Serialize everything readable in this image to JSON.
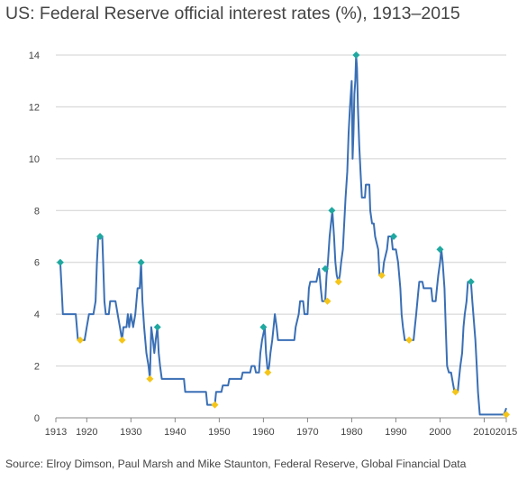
{
  "chart_data": {
    "type": "line",
    "title": "US: Federal Reserve official interest rates (%), 1913–2015",
    "source": "Source: Elroy Dimson, Paul Marsh and Mike Staunton, Federal Reserve, Global Financial Data",
    "xlabel": "",
    "ylabel": "",
    "xlim": [
      1913,
      2015
    ],
    "ylim": [
      0,
      14
    ],
    "grid": true,
    "x_ticks": [
      1913,
      1920,
      1930,
      1940,
      1950,
      1960,
      1970,
      1980,
      1990,
      2000,
      2010,
      2015
    ],
    "x_tick_labels": [
      "1913",
      "1920",
      "1930",
      "1940",
      "1950",
      "1960",
      "1970",
      "1980",
      "1990",
      "2000",
      "2010",
      "2015"
    ],
    "y_ticks": [
      0,
      2,
      4,
      6,
      8,
      10,
      12,
      14
    ],
    "y_tick_labels": [
      "0",
      "2",
      "4",
      "6",
      "8",
      "10",
      "12",
      "14"
    ],
    "colors": {
      "line": "#3a6fb5",
      "peak": "#1fa8a0",
      "trough": "#f5c518",
      "grid": "#d0d0d0",
      "axis": "#888888"
    },
    "series": [
      {
        "points": [
          [
            1914.0,
            6.0
          ],
          [
            1914.3,
            5.0
          ],
          [
            1914.6,
            4.0
          ],
          [
            1916.0,
            4.0
          ],
          [
            1917.5,
            4.0
          ],
          [
            1918.0,
            3.0
          ],
          [
            1919.5,
            3.0
          ],
          [
            1920.0,
            3.5
          ],
          [
            1920.5,
            4.0
          ],
          [
            1921.5,
            4.0
          ],
          [
            1922.0,
            4.5
          ],
          [
            1922.3,
            6.0
          ],
          [
            1922.6,
            7.0
          ],
          [
            1923.5,
            7.0
          ],
          [
            1923.7,
            6.0
          ],
          [
            1924.0,
            4.5
          ],
          [
            1924.3,
            4.0
          ],
          [
            1925.0,
            4.0
          ],
          [
            1925.3,
            4.5
          ],
          [
            1926.5,
            4.5
          ],
          [
            1927.0,
            4.0
          ],
          [
            1927.5,
            3.5
          ],
          [
            1928.0,
            3.0
          ],
          [
            1928.3,
            3.5
          ],
          [
            1929.0,
            3.5
          ],
          [
            1929.3,
            4.0
          ],
          [
            1929.6,
            3.5
          ],
          [
            1930.0,
            4.0
          ],
          [
            1930.5,
            3.5
          ],
          [
            1931.0,
            4.0
          ],
          [
            1931.5,
            5.0
          ],
          [
            1932.0,
            5.0
          ],
          [
            1932.3,
            6.0
          ],
          [
            1932.6,
            4.5
          ],
          [
            1933.0,
            3.5
          ],
          [
            1933.5,
            2.5
          ],
          [
            1934.0,
            2.0
          ],
          [
            1934.3,
            1.5
          ],
          [
            1934.6,
            3.5
          ],
          [
            1935.0,
            3.0
          ],
          [
            1935.3,
            2.5
          ],
          [
            1935.6,
            3.0
          ],
          [
            1936.0,
            3.5
          ],
          [
            1936.3,
            2.5
          ],
          [
            1936.6,
            2.0
          ],
          [
            1937.0,
            1.5
          ],
          [
            1938.0,
            1.5
          ],
          [
            1942.0,
            1.5
          ],
          [
            1942.3,
            1.0
          ],
          [
            1947.0,
            1.0
          ],
          [
            1947.3,
            0.5
          ],
          [
            1949.0,
            0.5
          ],
          [
            1949.3,
            1.0
          ],
          [
            1950.5,
            1.0
          ],
          [
            1950.8,
            1.25
          ],
          [
            1952.0,
            1.25
          ],
          [
            1952.3,
            1.5
          ],
          [
            1955.0,
            1.5
          ],
          [
            1955.3,
            1.75
          ],
          [
            1957.0,
            1.75
          ],
          [
            1957.3,
            2.0
          ],
          [
            1958.0,
            2.0
          ],
          [
            1958.3,
            1.75
          ],
          [
            1959.0,
            1.75
          ],
          [
            1959.3,
            2.5
          ],
          [
            1959.7,
            3.0
          ],
          [
            1960.0,
            3.25
          ],
          [
            1960.3,
            3.5
          ],
          [
            1960.6,
            2.5
          ],
          [
            1961.0,
            1.75
          ],
          [
            1961.3,
            2.0
          ],
          [
            1961.6,
            2.5
          ],
          [
            1962.0,
            3.0
          ],
          [
            1962.3,
            3.5
          ],
          [
            1962.6,
            4.0
          ],
          [
            1963.0,
            3.5
          ],
          [
            1963.3,
            3.0
          ],
          [
            1967.0,
            3.0
          ],
          [
            1967.3,
            3.5
          ],
          [
            1968.0,
            4.0
          ],
          [
            1968.3,
            4.5
          ],
          [
            1969.0,
            4.5
          ],
          [
            1969.3,
            4.0
          ],
          [
            1970.0,
            4.0
          ],
          [
            1970.3,
            5.0
          ],
          [
            1970.6,
            5.25
          ],
          [
            1972.0,
            5.25
          ],
          [
            1972.3,
            5.5
          ],
          [
            1972.6,
            5.75
          ],
          [
            1973.0,
            5.0
          ],
          [
            1973.3,
            4.5
          ],
          [
            1974.0,
            4.5
          ],
          [
            1974.3,
            5.5
          ],
          [
            1974.6,
            6.0
          ],
          [
            1975.0,
            7.0
          ],
          [
            1975.3,
            7.5
          ],
          [
            1975.6,
            8.0
          ],
          [
            1976.0,
            7.0
          ],
          [
            1976.3,
            6.0
          ],
          [
            1976.6,
            5.5
          ],
          [
            1977.0,
            5.25
          ],
          [
            1977.3,
            5.5
          ],
          [
            1977.6,
            6.0
          ],
          [
            1978.0,
            6.5
          ],
          [
            1978.3,
            7.5
          ],
          [
            1978.6,
            8.5
          ],
          [
            1979.0,
            9.5
          ],
          [
            1979.3,
            11.0
          ],
          [
            1979.6,
            12.0
          ],
          [
            1980.0,
            13.0
          ],
          [
            1980.2,
            10.0
          ],
          [
            1980.4,
            11.0
          ],
          [
            1980.6,
            12.5
          ],
          [
            1980.8,
            13.0
          ],
          [
            1981.0,
            14.0
          ],
          [
            1981.2,
            13.5
          ],
          [
            1981.4,
            12.0
          ],
          [
            1981.7,
            10.5
          ],
          [
            1982.0,
            9.5
          ],
          [
            1982.3,
            8.5
          ],
          [
            1983.0,
            8.5
          ],
          [
            1983.2,
            9.0
          ],
          [
            1984.0,
            9.0
          ],
          [
            1984.2,
            8.0
          ],
          [
            1984.6,
            7.5
          ],
          [
            1985.0,
            7.5
          ],
          [
            1985.3,
            7.0
          ],
          [
            1986.0,
            6.5
          ],
          [
            1986.3,
            5.5
          ],
          [
            1987.0,
            5.5
          ],
          [
            1987.3,
            6.0
          ],
          [
            1988.0,
            6.5
          ],
          [
            1988.3,
            7.0
          ],
          [
            1989.0,
            7.0
          ],
          [
            1989.3,
            6.5
          ],
          [
            1990.0,
            6.5
          ],
          [
            1990.5,
            6.0
          ],
          [
            1991.0,
            5.0
          ],
          [
            1991.3,
            4.0
          ],
          [
            1991.6,
            3.5
          ],
          [
            1992.0,
            3.0
          ],
          [
            1994.0,
            3.0
          ],
          [
            1994.3,
            3.5
          ],
          [
            1994.6,
            4.0
          ],
          [
            1995.0,
            4.75
          ],
          [
            1995.3,
            5.25
          ],
          [
            1996.0,
            5.25
          ],
          [
            1996.3,
            5.0
          ],
          [
            1998.0,
            5.0
          ],
          [
            1998.3,
            4.5
          ],
          [
            1999.0,
            4.5
          ],
          [
            1999.3,
            5.0
          ],
          [
            1999.6,
            5.5
          ],
          [
            2000.0,
            6.0
          ],
          [
            2000.3,
            6.5
          ],
          [
            2000.6,
            6.0
          ],
          [
            2001.0,
            5.0
          ],
          [
            2001.3,
            3.5
          ],
          [
            2001.6,
            2.0
          ],
          [
            2002.0,
            1.75
          ],
          [
            2002.5,
            1.75
          ],
          [
            2003.0,
            1.25
          ],
          [
            2003.3,
            1.0
          ],
          [
            2004.0,
            1.0
          ],
          [
            2004.3,
            1.5
          ],
          [
            2004.6,
            2.0
          ],
          [
            2005.0,
            2.5
          ],
          [
            2005.3,
            3.5
          ],
          [
            2005.6,
            4.0
          ],
          [
            2006.0,
            4.5
          ],
          [
            2006.3,
            5.25
          ],
          [
            2007.0,
            5.25
          ],
          [
            2007.3,
            4.5
          ],
          [
            2008.0,
            3.0
          ],
          [
            2008.3,
            2.0
          ],
          [
            2008.6,
            1.0
          ],
          [
            2009.0,
            0.125
          ],
          [
            2014.5,
            0.125
          ],
          [
            2015.0,
            0.375
          ]
        ]
      }
    ],
    "peak_markers": [
      [
        1914.0,
        6.0
      ],
      [
        1923.0,
        7.0
      ],
      [
        1932.3,
        6.0
      ],
      [
        1936.0,
        3.5
      ],
      [
        1960.0,
        3.5
      ],
      [
        1974.0,
        5.75
      ],
      [
        1975.5,
        8.0
      ],
      [
        1981.0,
        14.0
      ],
      [
        1989.5,
        7.0
      ],
      [
        2000.0,
        6.5
      ],
      [
        2007.0,
        5.25
      ]
    ],
    "trough_markers": [
      [
        1918.5,
        3.0
      ],
      [
        1928.0,
        3.0
      ],
      [
        1934.3,
        1.5
      ],
      [
        1949.0,
        0.5
      ],
      [
        1961.0,
        1.75
      ],
      [
        1974.5,
        4.5
      ],
      [
        1977.0,
        5.25
      ],
      [
        1986.8,
        5.5
      ],
      [
        1993.0,
        3.0
      ],
      [
        2003.5,
        1.0
      ],
      [
        2015.0,
        0.125
      ]
    ]
  }
}
